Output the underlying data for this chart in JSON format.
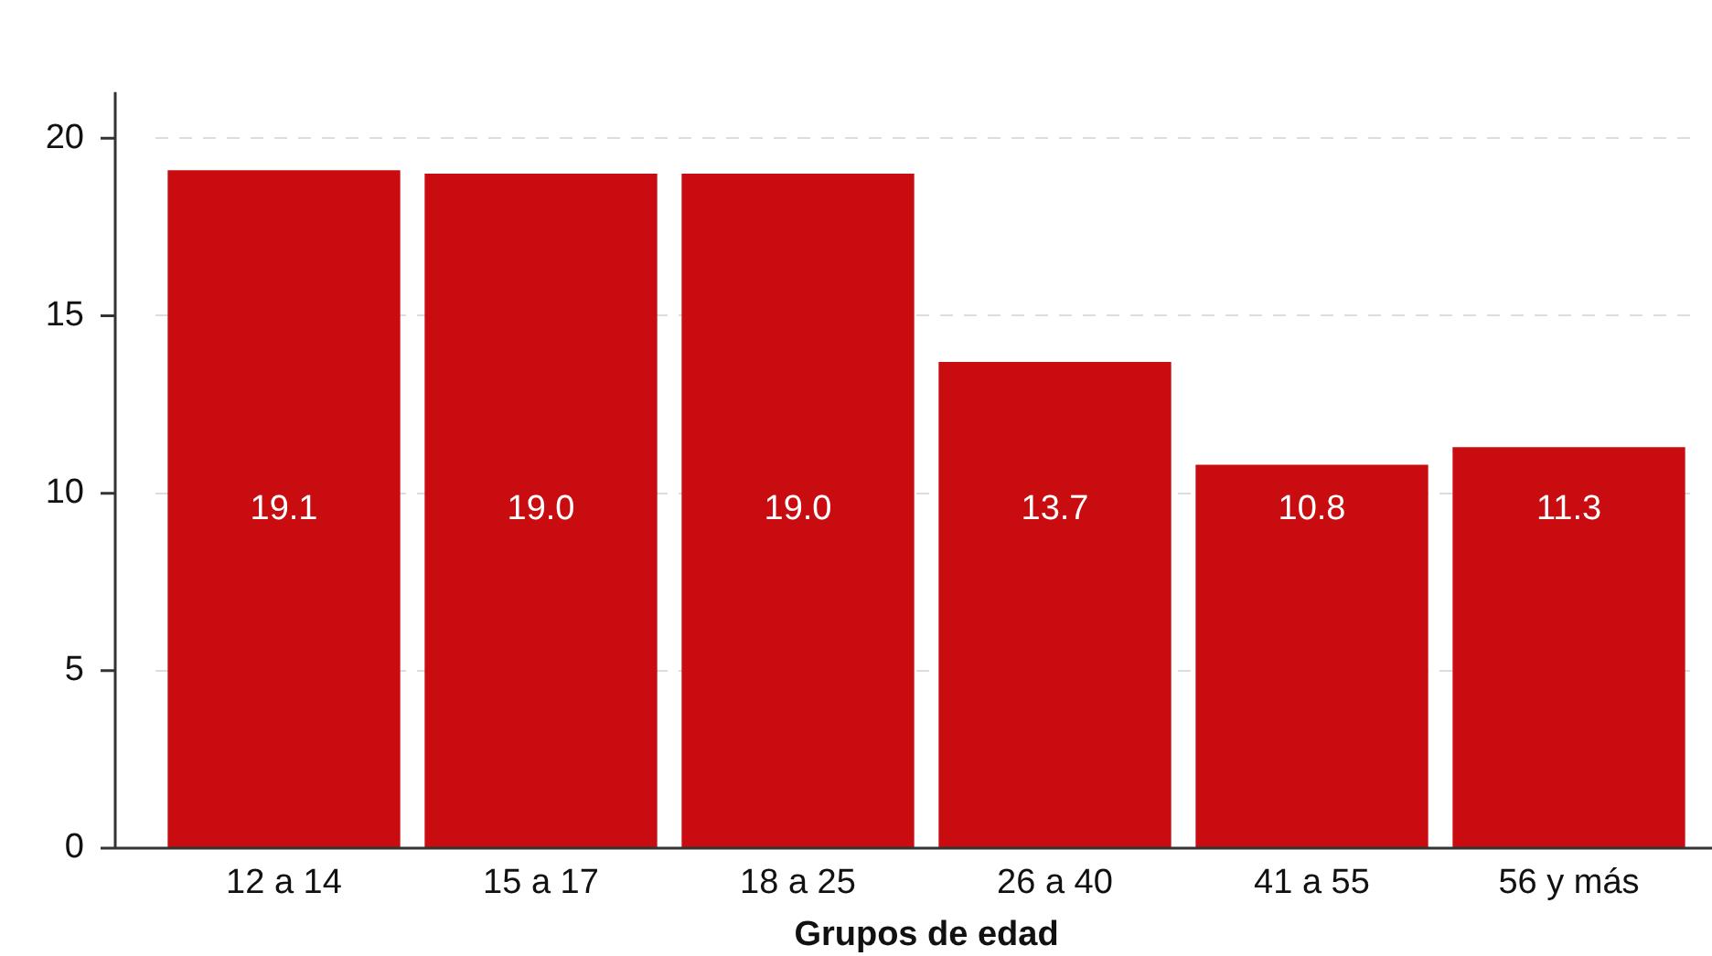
{
  "chart_data": {
    "type": "bar",
    "xlabel": "Grupos de edad",
    "categories": [
      "12 a 14",
      "15 a 17",
      "18 a 25",
      "26 a 40",
      "41 a 55",
      "56 y más"
    ],
    "values": [
      19.1,
      19.0,
      19.0,
      13.7,
      10.8,
      11.3
    ],
    "value_labels": [
      "19.1",
      "19.0",
      "19.0",
      "13.7",
      "10.8",
      "11.3"
    ],
    "color": "#c90c10",
    "ylim": [
      0,
      21.3
    ],
    "yticks": [
      0,
      5,
      10,
      15,
      20
    ],
    "grid": "y"
  }
}
